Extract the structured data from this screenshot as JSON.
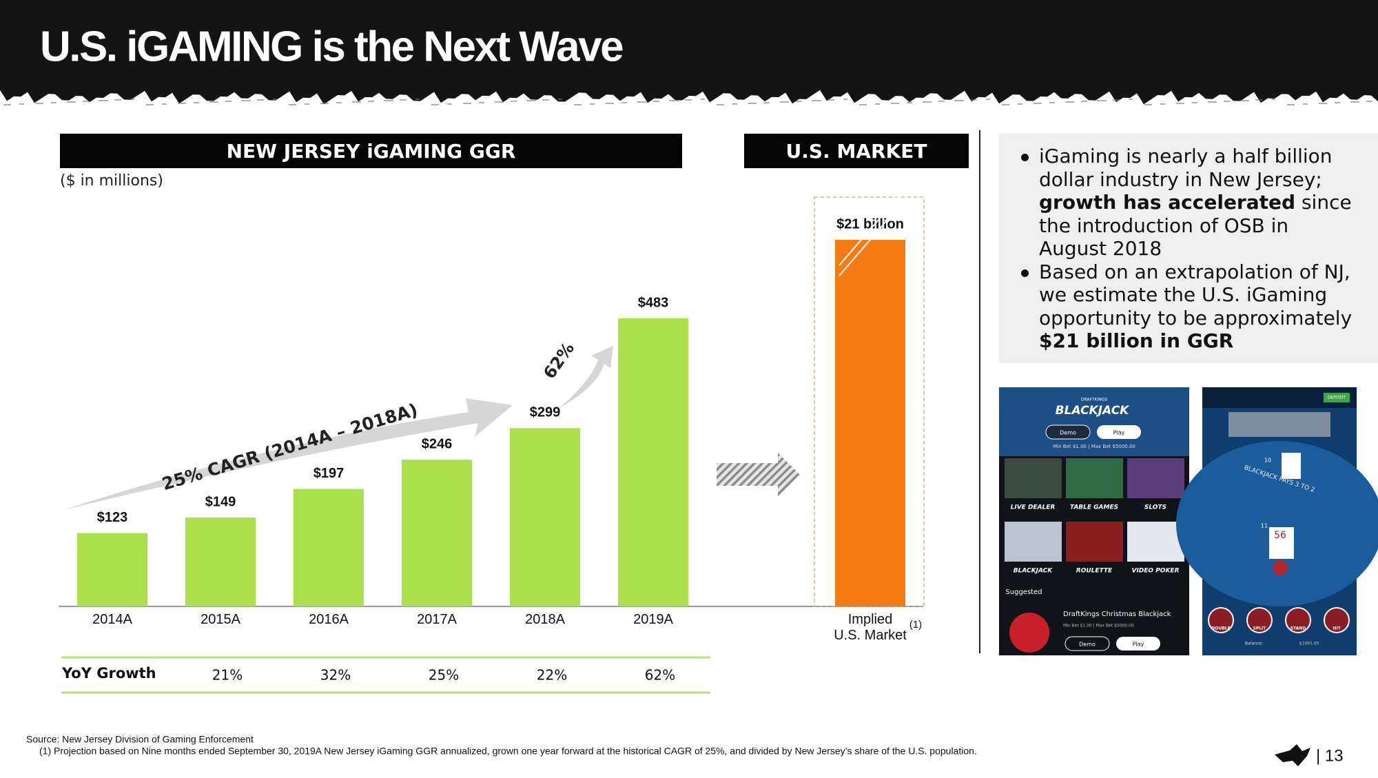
{
  "title": "U.S. iGAMING is the Next Wave",
  "chart_data": [
    {
      "type": "bar",
      "title": "NEW JERSEY iGAMING GGR",
      "subtitle": "($ in millions)",
      "categories": [
        "2014A",
        "2015A",
        "2016A",
        "2017A",
        "2018A",
        "2019A"
      ],
      "values": [
        123,
        149,
        197,
        246,
        299,
        483
      ],
      "value_labels": [
        "$123",
        "$149",
        "$197",
        "$246",
        "$299",
        "$483"
      ],
      "color": "#a9e04b",
      "annotations": [
        "25% CAGR (2014A – 2018A)",
        "62%"
      ],
      "growth": {
        "label": "YoY Growth",
        "values": [
          21,
          32,
          25,
          22,
          62
        ],
        "value_labels": [
          "21%",
          "32%",
          "25%",
          "22%",
          "62%"
        ]
      }
    },
    {
      "type": "bar",
      "title": "U.S. MARKET",
      "categories": [
        "Implied\nU.S. Market"
      ],
      "note_marker": "(1)",
      "values": [
        21
      ],
      "value_labels": [
        "$21 billion"
      ],
      "color": "#f57b12"
    }
  ],
  "bullets": [
    {
      "parts": [
        {
          "text": "iGaming is nearly a half billion dollar industry in New Jersey; ",
          "bold": false
        },
        {
          "text": "growth has accelerated",
          "bold": true
        },
        {
          "text": " since the introduction of OSB in August 2018",
          "bold": false
        }
      ]
    },
    {
      "parts": [
        {
          "text": "Based on an extrapolation of NJ, we estimate the U.S. iGaming opportunity to be approximately ",
          "bold": false
        },
        {
          "text": "$21 billion in GGR",
          "bold": true
        }
      ]
    }
  ],
  "app_screens": [
    {
      "brand": "DRAFTKINGS",
      "title": "BLACKJACK",
      "buttons": [
        "Demo",
        "Play"
      ],
      "limits": "Min Bet $1.00 | Max Bet $5000.00",
      "tiles": [
        "LIVE DEALER",
        "TABLE GAMES",
        "SLOTS",
        "BLACKJACK",
        "ROULETTE",
        "VIDEO POKER"
      ],
      "section": "Suggested",
      "game": "DraftKings Christmas Blackjack",
      "game_limits": "Min Bet $1.00 | Max Bet $5000.00",
      "game_buttons": [
        "Demo",
        "Play"
      ]
    },
    {
      "deposit": "DEPOSIT",
      "table_text": "BLACKJACK PAYS 3 TO 2",
      "cards": [
        "10",
        "11",
        "56"
      ],
      "actions": [
        "DOUBLE",
        "SPLIT",
        "STAND",
        "HIT"
      ],
      "balance_label": "Balance:",
      "balance": "$1995.00"
    }
  ],
  "source": "Source:  New Jersey Division of Gaming Enforcement",
  "footnote": "(1) Projection based on Nine months ended September 30, 2019A New Jersey iGaming GGR annualized, grown one year forward at the historical CAGR of 25%, and divided by New Jersey’s share of the U.S. population.",
  "page_number": "| 13"
}
